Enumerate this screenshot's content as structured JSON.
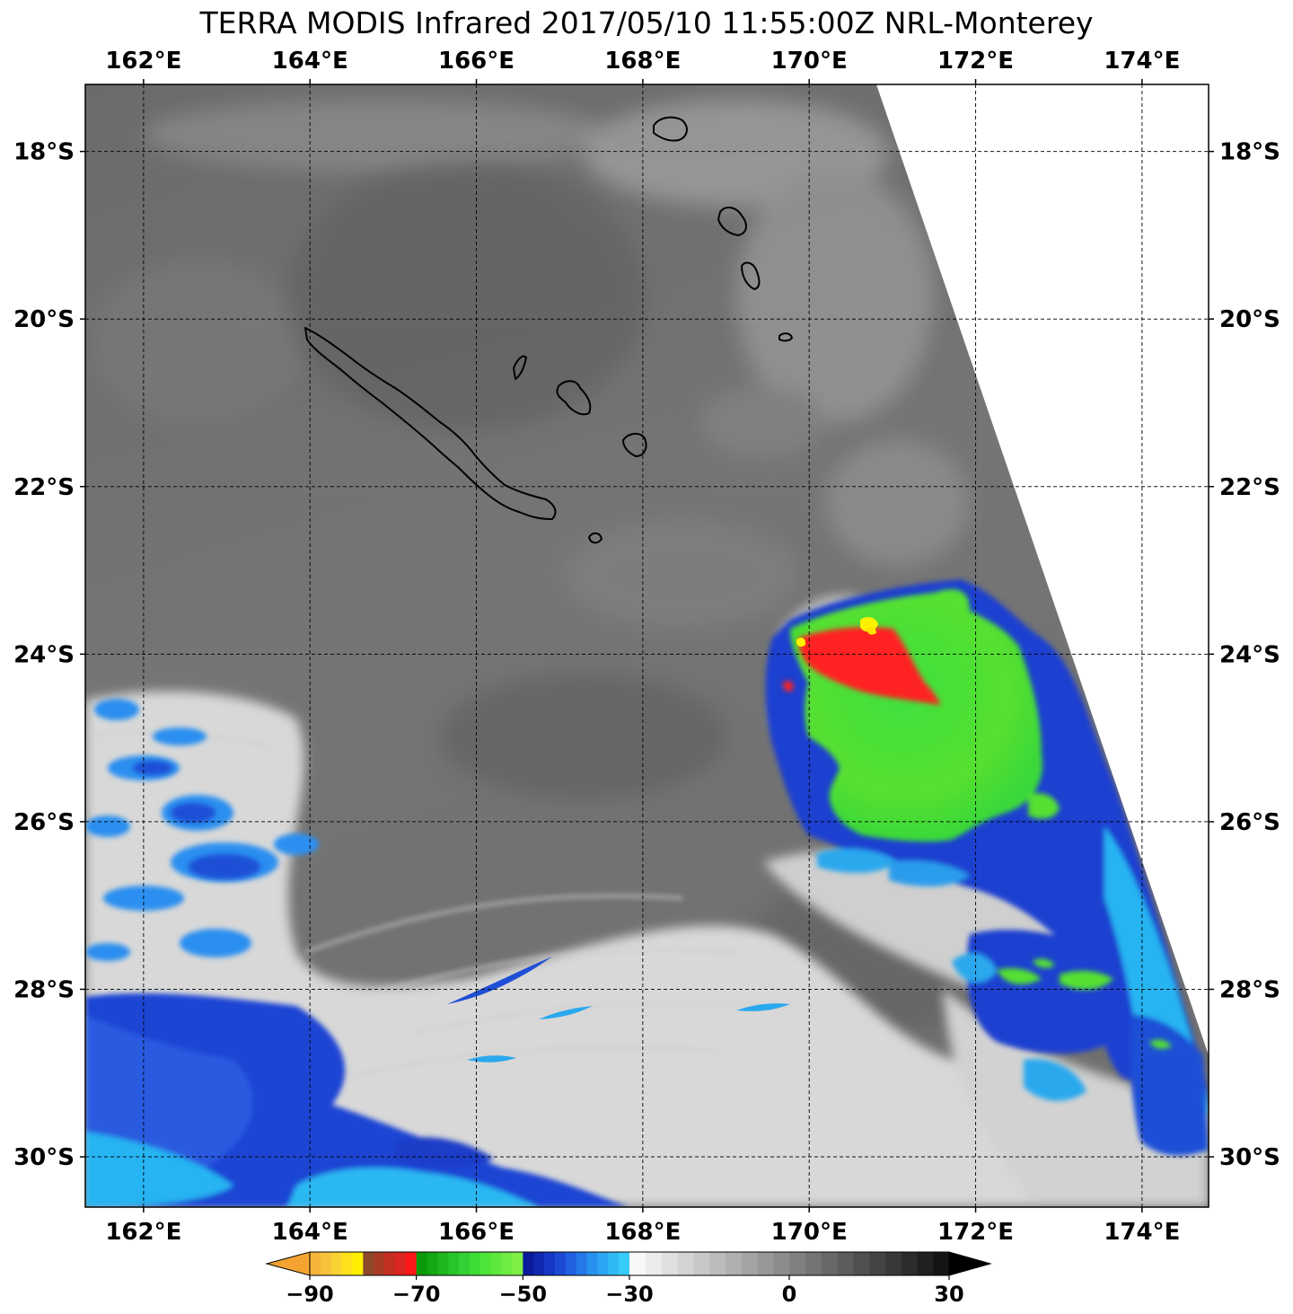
{
  "title": "TERRA MODIS Infrared 2017/05/10 11:55:00Z NRL-Monterey",
  "map": {
    "lon_range": [
      161.3,
      174.8
    ],
    "lat_range": [
      -17.2,
      -30.6
    ],
    "lon_ticks": [
      {
        "value": 162,
        "label": "162°E"
      },
      {
        "value": 164,
        "label": "164°E"
      },
      {
        "value": 166,
        "label": "166°E"
      },
      {
        "value": 168,
        "label": "168°E"
      },
      {
        "value": 170,
        "label": "170°E"
      },
      {
        "value": 172,
        "label": "172°E"
      },
      {
        "value": 174,
        "label": "174°E"
      }
    ],
    "lat_ticks": [
      {
        "value": -18,
        "label": "18°S"
      },
      {
        "value": -20,
        "label": "20°S"
      },
      {
        "value": -22,
        "label": "22°S"
      },
      {
        "value": -24,
        "label": "24°S"
      },
      {
        "value": -26,
        "label": "26°S"
      },
      {
        "value": -28,
        "label": "28°S"
      },
      {
        "value": -30,
        "label": "30°S"
      }
    ],
    "gridlines": true,
    "gridline_style": "dashed"
  },
  "colorbar": {
    "min": -90,
    "max": 30,
    "ticks": [
      {
        "value": -90,
        "label": "−90"
      },
      {
        "value": -70,
        "label": "−70"
      },
      {
        "value": -50,
        "label": "−50"
      },
      {
        "value": -30,
        "label": "−30"
      },
      {
        "value": 0,
        "label": "0"
      },
      {
        "value": 30,
        "label": "30"
      }
    ],
    "extend": "both",
    "colors": {
      "under": "#f4a330",
      "over": "#000000",
      "orange": "#f4a330",
      "yellow": "#ffe800",
      "red": "#ff1a1a",
      "green": "#2fd62f",
      "blue": "#1a4fd6",
      "cyan": "#20b0f0",
      "white": "#f2f2f2",
      "dark": "#2a2a2a"
    }
  },
  "colors": {
    "background_gray": "#6f6f6f",
    "no_data": "#ffffff",
    "storm_green": "#33e033",
    "storm_red": "#ff2020",
    "storm_yellow": "#fff200",
    "cold_blue": "#1f3fd0",
    "cold_cyan": "#24b8f5",
    "cloud_white": "#e6e6e6"
  },
  "icons": {
    "colorbar_under": "triangle-left",
    "colorbar_over": "triangle-right"
  }
}
